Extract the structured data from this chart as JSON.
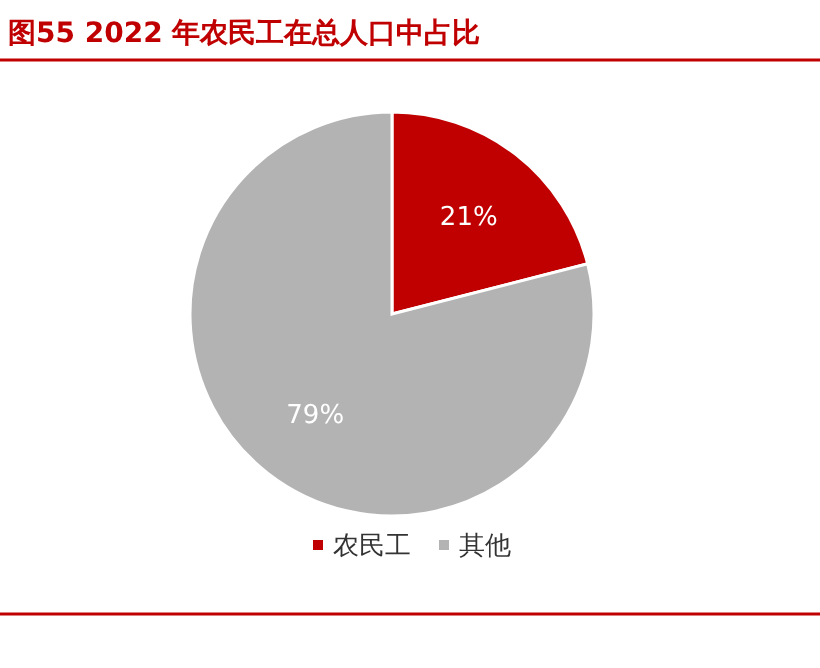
{
  "chart_data": {
    "type": "pie",
    "title": "图55  2022 年农民工在总人口中占比",
    "categories": [
      "农民工",
      "其他"
    ],
    "values": [
      21,
      79
    ],
    "colors": [
      "#c00000",
      "#b3b3b3"
    ],
    "value_labels": [
      "21%",
      "79%"
    ],
    "legend": "bottom"
  }
}
